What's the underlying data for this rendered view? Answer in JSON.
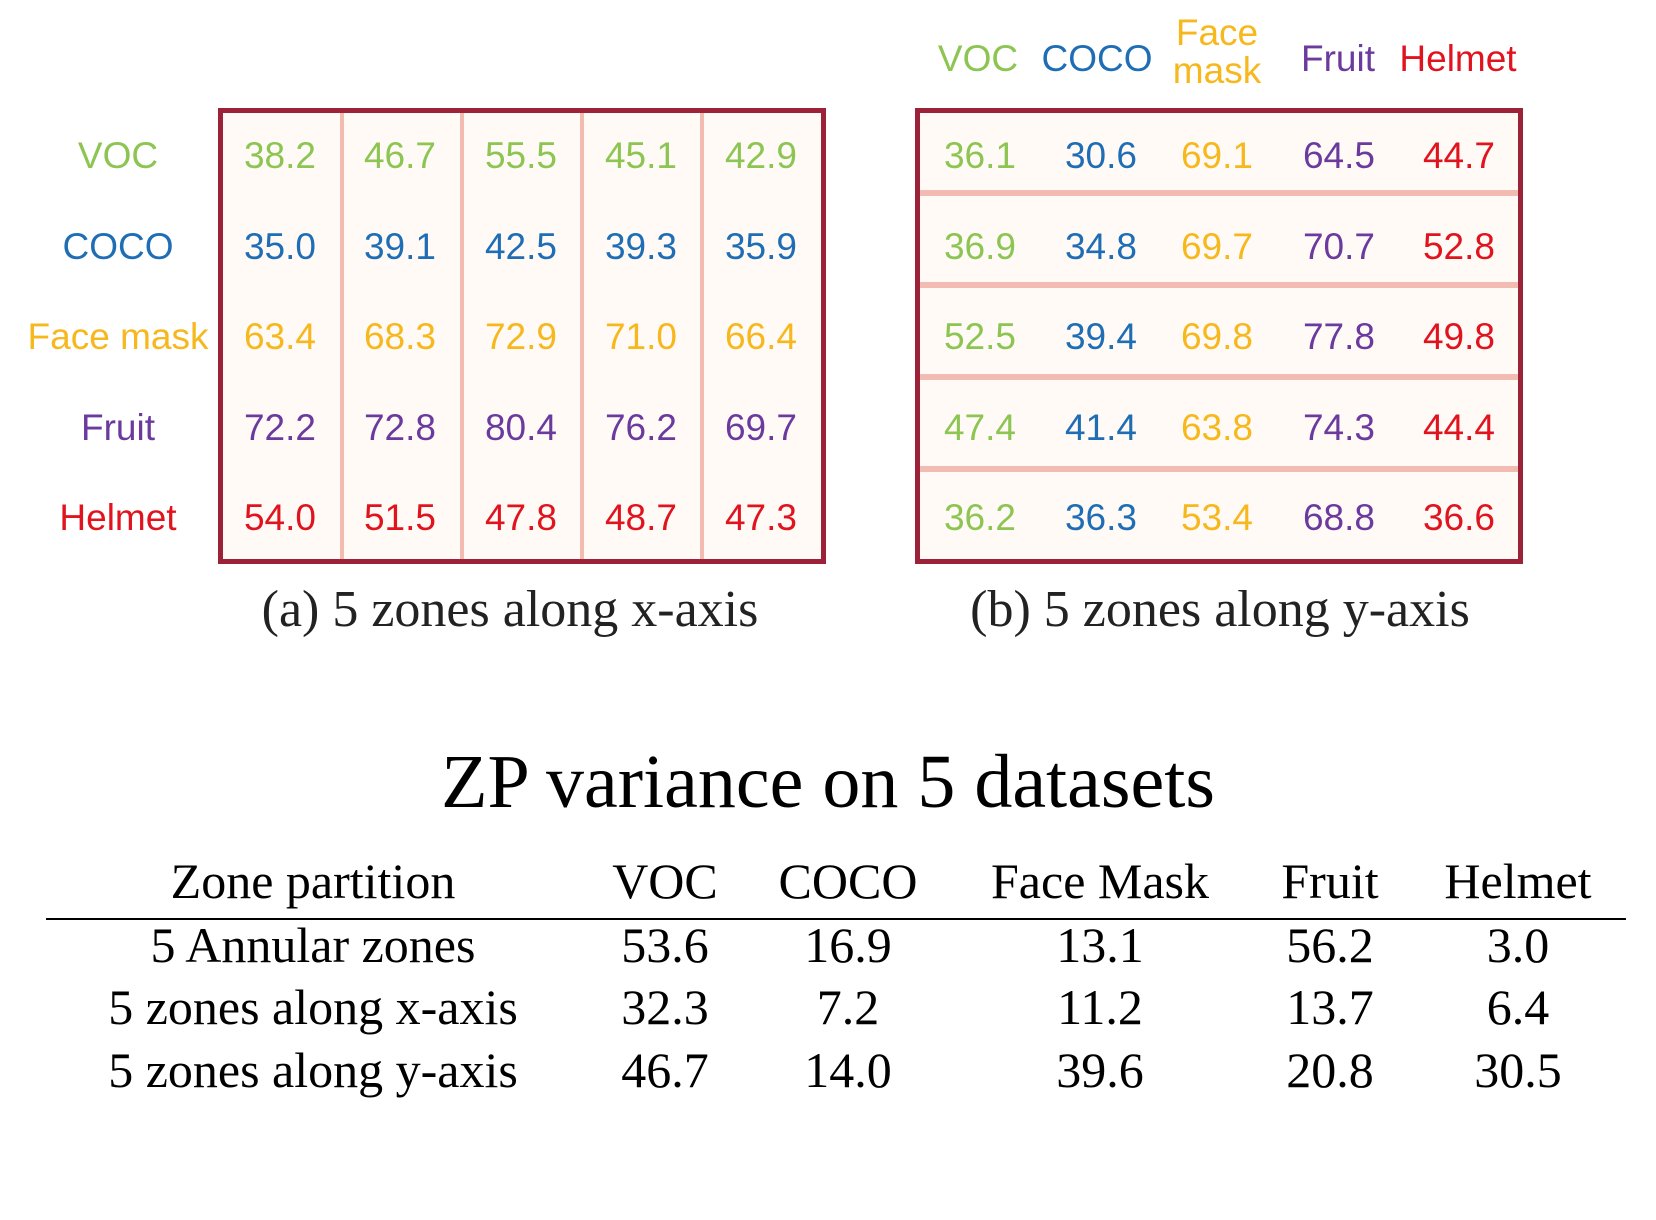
{
  "datasets": [
    {
      "label": "VOC",
      "color": "#8cc552"
    },
    {
      "label": "COCO",
      "color": "#1f6eb5"
    },
    {
      "label": "Face mask",
      "color": "#f6b81c"
    },
    {
      "label": "Fruit",
      "color": "#6b3a9e"
    },
    {
      "label": "Helmet",
      "color": "#e0141e"
    }
  ],
  "column_headers_b": [
    "VOC",
    "COCO",
    "Face\nmask",
    "Fruit",
    "Helmet"
  ],
  "panel_a": {
    "caption": "(a) 5 zones along x-axis",
    "rows": [
      [
        "38.2",
        "46.7",
        "55.5",
        "45.1",
        "42.9"
      ],
      [
        "35.0",
        "39.1",
        "42.5",
        "39.3",
        "35.9"
      ],
      [
        "63.4",
        "68.3",
        "72.9",
        "71.0",
        "66.4"
      ],
      [
        "72.2",
        "72.8",
        "80.4",
        "76.2",
        "69.7"
      ],
      [
        "54.0",
        "51.5",
        "47.8",
        "48.7",
        "47.3"
      ]
    ]
  },
  "panel_b": {
    "caption": "(b) 5 zones along y-axis",
    "rows": [
      [
        "36.1",
        "30.6",
        "69.1",
        "64.5",
        "44.7"
      ],
      [
        "36.9",
        "34.8",
        "69.7",
        "70.7",
        "52.8"
      ],
      [
        "52.5",
        "39.4",
        "69.8",
        "77.8",
        "49.8"
      ],
      [
        "47.4",
        "41.4",
        "63.8",
        "74.3",
        "44.4"
      ],
      [
        "36.2",
        "36.3",
        "53.4",
        "68.8",
        "36.6"
      ]
    ]
  },
  "variance_table": {
    "title": "ZP variance on 5 datasets",
    "headers": [
      "Zone partition",
      "VOC",
      "COCO",
      "Face Mask",
      "Fruit",
      "Helmet"
    ],
    "rows": [
      [
        "5 Annular zones",
        "53.6",
        "16.9",
        "13.1",
        "56.2",
        "3.0"
      ],
      [
        "5 zones along x-axis",
        "32.3",
        "7.2",
        "11.2",
        "13.7",
        "6.4"
      ],
      [
        "5 zones along y-axis",
        "46.7",
        "14.0",
        "39.6",
        "20.8",
        "30.5"
      ]
    ]
  },
  "chart_data": [
    {
      "type": "table",
      "title": "(a) 5 zones along x-axis",
      "row_labels": [
        "VOC",
        "COCO",
        "Face mask",
        "Fruit",
        "Helmet"
      ],
      "values": [
        [
          38.2,
          46.7,
          55.5,
          45.1,
          42.9
        ],
        [
          35.0,
          39.1,
          42.5,
          39.3,
          35.9
        ],
        [
          63.4,
          68.3,
          72.9,
          71.0,
          66.4
        ],
        [
          72.2,
          72.8,
          80.4,
          76.2,
          69.7
        ],
        [
          54.0,
          51.5,
          47.8,
          48.7,
          47.3
        ]
      ]
    },
    {
      "type": "table",
      "title": "(b) 5 zones along y-axis",
      "column_labels": [
        "VOC",
        "COCO",
        "Face mask",
        "Fruit",
        "Helmet"
      ],
      "values": [
        [
          36.1,
          30.6,
          69.1,
          64.5,
          44.7
        ],
        [
          36.9,
          34.8,
          69.7,
          70.7,
          52.8
        ],
        [
          52.5,
          39.4,
          69.8,
          77.8,
          49.8
        ],
        [
          47.4,
          41.4,
          63.8,
          74.3,
          44.4
        ],
        [
          36.2,
          36.3,
          53.4,
          68.8,
          36.6
        ]
      ]
    },
    {
      "type": "table",
      "title": "ZP variance on 5 datasets",
      "columns": [
        "Zone partition",
        "VOC",
        "COCO",
        "Face Mask",
        "Fruit",
        "Helmet"
      ],
      "rows": [
        [
          "5 Annular zones",
          53.6,
          16.9,
          13.1,
          56.2,
          3.0
        ],
        [
          "5 zones along x-axis",
          32.3,
          7.2,
          11.2,
          13.7,
          6.4
        ],
        [
          "5 zones along y-axis",
          46.7,
          14.0,
          39.6,
          20.8,
          30.5
        ]
      ]
    }
  ]
}
